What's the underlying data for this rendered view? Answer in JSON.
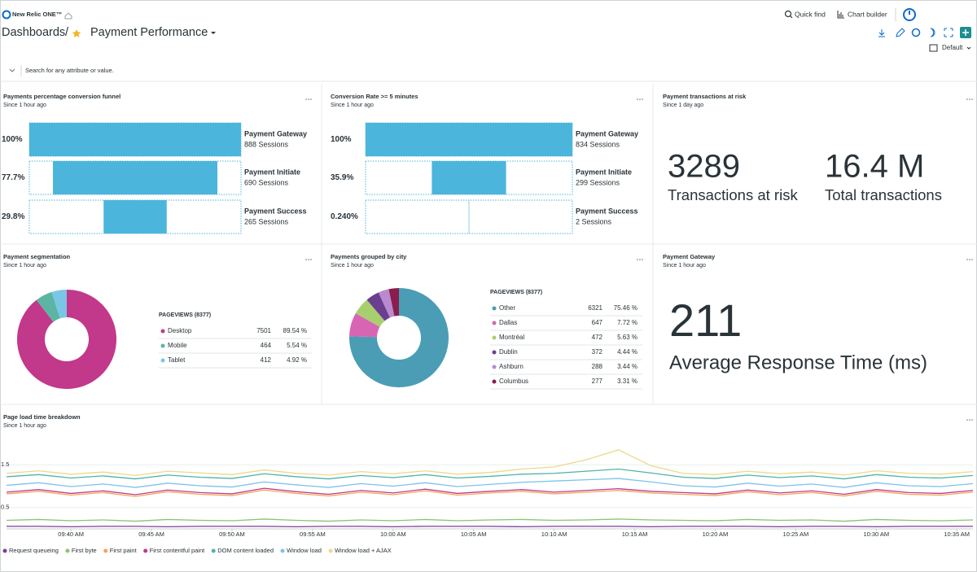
{
  "header": {
    "brand": "New Relic ONE™",
    "quick_find": "Quick find",
    "chart_builder": "Chart builder",
    "breadcrumb": "Dashboards",
    "separator": "/",
    "title": "Payment Performance",
    "view": "Default"
  },
  "search": {
    "placeholder": "Search for any attribute or value."
  },
  "widgets": {
    "funnel_payments": {
      "title": "Payments percentage conversion funnel",
      "subtitle": "Since 1 hour ago",
      "steps": [
        {
          "name": "Payment Gateway",
          "sessions": "888 Sessions",
          "value": 100,
          "value_label": "100%"
        },
        {
          "name": "Payment Initiate",
          "sessions": "690 Sessions",
          "value": 77.7,
          "value_label": "77.7%"
        },
        {
          "name": "Payment Success",
          "sessions": "265 Sessions",
          "value": 29.8,
          "value_label": "29.8%"
        }
      ]
    },
    "funnel_conversion": {
      "title": "Conversion Rate >= 5 minutes",
      "subtitle": "Since 1 hour ago",
      "steps": [
        {
          "name": "Payment Gateway",
          "sessions": "834 Sessions",
          "value": 100,
          "value_label": "100%"
        },
        {
          "name": "Payment Initiate",
          "sessions": "299 Sessions",
          "value": 35.9,
          "value_label": "35.9%"
        },
        {
          "name": "Payment Success",
          "sessions": "2 Sessions",
          "value": 0.24,
          "value_label": "0.240%"
        }
      ]
    },
    "transactions": {
      "title": "Payment transactions at risk",
      "subtitle": "Since 1 day ago",
      "metrics": [
        {
          "value": 3289,
          "label": "Transactions at risk"
        },
        {
          "value": "16.4 M",
          "label": "Total transactions"
        }
      ]
    },
    "segmentation": {
      "title": "Payment segmentation",
      "subtitle": "Since 1 hour ago",
      "legend_title": "PAGEVIEWS (8377)",
      "slices": [
        {
          "name": "Desktop",
          "color": "#c2388b",
          "count": 7501,
          "share": 89.54,
          "share_label": "89.54 %"
        },
        {
          "name": "Mobile",
          "color": "#5bb5a2",
          "count": 464,
          "share": 5.54,
          "share_label": "5.54 %"
        },
        {
          "name": "Tablet",
          "color": "#7ac6e6",
          "count": 412,
          "share": 4.92,
          "share_label": "4.92 %"
        }
      ]
    },
    "city": {
      "title": "Payments grouped by city",
      "subtitle": "Since 1 hour ago",
      "legend_title": "PAGEVIEWS (8377)",
      "slices": [
        {
          "name": "Other",
          "color": "#4a9db5",
          "count": 6321,
          "share": 75.46,
          "share_label": "75.46 %"
        },
        {
          "name": "Dallas",
          "color": "#d865b4",
          "count": 647,
          "share": 7.72,
          "share_label": "7.72 %"
        },
        {
          "name": "Montréal",
          "color": "#a8cf6f",
          "count": 472,
          "share": 5.63,
          "share_label": "5.63 %"
        },
        {
          "name": "Dublin",
          "color": "#6b3f8f",
          "count": 372,
          "share": 4.44,
          "share_label": "4.44 %"
        },
        {
          "name": "Ashburn",
          "color": "#b98ad0",
          "count": 288,
          "share": 3.44,
          "share_label": "3.44 %"
        },
        {
          "name": "Columbus",
          "color": "#8a1d4d",
          "count": 277,
          "share": 3.31,
          "share_label": "3.31 %"
        }
      ]
    },
    "gateway": {
      "title": "Payment Gateway",
      "subtitle": "Since 1 hour ago",
      "value": 211,
      "label": "Average Response Time (ms)"
    },
    "load_time": {
      "title": "Page load time breakdown",
      "subtitle": "Since 1 hour ago",
      "chart_data": {
        "type": "line",
        "x": [
          0,
          2,
          4,
          6,
          8,
          10,
          12,
          14,
          16,
          18,
          20,
          22,
          24,
          26,
          28,
          30,
          32,
          34,
          36,
          38,
          40,
          42,
          44,
          46,
          48,
          50,
          52,
          54,
          56,
          58,
          60
        ],
        "xlim": [
          0,
          60
        ],
        "xticks": [
          {
            "value": 4,
            "label": "09:40 AM"
          },
          {
            "value": 9,
            "label": "09:45 AM"
          },
          {
            "value": 14,
            "label": "09:50 AM"
          },
          {
            "value": 19,
            "label": "09:55 AM"
          },
          {
            "value": 24,
            "label": "10:00 AM"
          },
          {
            "value": 29,
            "label": "10:05 AM"
          },
          {
            "value": 34,
            "label": "10:10 AM"
          },
          {
            "value": 39,
            "label": "10:15 AM"
          },
          {
            "value": 44,
            "label": "10:20 AM"
          },
          {
            "value": 49,
            "label": "10:25 AM"
          },
          {
            "value": 54,
            "label": "10:30 AM"
          },
          {
            "value": 59,
            "label": "10:35 AM"
          }
        ],
        "ylim": [
          0,
          2
        ],
        "yticks": [
          0.5,
          1.5
        ],
        "grid": true,
        "series": [
          {
            "name": "Request queueing",
            "color": "#7b3f98",
            "values": [
              0.06,
              0.06,
              0.05,
              0.06,
              0.06,
              0.05,
              0.06,
              0.06,
              0.06,
              0.05,
              0.06,
              0.06,
              0.05,
              0.06,
              0.06,
              0.06,
              0.05,
              0.06,
              0.06,
              0.06,
              0.05,
              0.06,
              0.06,
              0.06,
              0.05,
              0.06,
              0.06,
              0.05,
              0.06,
              0.06,
              0.06
            ]
          },
          {
            "name": "First byte",
            "color": "#8dc26f",
            "values": [
              0.2,
              0.22,
              0.19,
              0.21,
              0.18,
              0.22,
              0.2,
              0.19,
              0.23,
              0.2,
              0.18,
              0.21,
              0.19,
              0.22,
              0.19,
              0.21,
              0.22,
              0.2,
              0.21,
              0.23,
              0.21,
              0.2,
              0.19,
              0.22,
              0.2,
              0.21,
              0.18,
              0.22,
              0.2,
              0.19,
              0.21
            ]
          },
          {
            "name": "First paint",
            "color": "#f2a55a",
            "values": [
              0.82,
              0.88,
              0.79,
              0.85,
              0.76,
              0.87,
              0.81,
              0.78,
              0.91,
              0.83,
              0.77,
              0.86,
              0.8,
              0.89,
              0.79,
              0.84,
              0.88,
              0.82,
              0.86,
              0.9,
              0.84,
              0.81,
              0.78,
              0.87,
              0.8,
              0.85,
              0.77,
              0.88,
              0.81,
              0.79,
              0.86
            ]
          },
          {
            "name": "First contentful paint",
            "color": "#c2388b",
            "values": [
              0.86,
              0.92,
              0.83,
              0.89,
              0.8,
              0.91,
              0.85,
              0.82,
              0.95,
              0.87,
              0.81,
              0.9,
              0.84,
              0.93,
              0.83,
              0.88,
              0.92,
              0.86,
              0.9,
              0.94,
              0.88,
              0.85,
              0.82,
              0.91,
              0.84,
              0.89,
              0.81,
              0.92,
              0.85,
              0.83,
              0.9
            ]
          },
          {
            "name": "DOM content loaded",
            "color": "#4fb3a8",
            "values": [
              1.22,
              1.27,
              1.19,
              1.24,
              1.17,
              1.26,
              1.21,
              1.18,
              1.29,
              1.22,
              1.17,
              1.25,
              1.2,
              1.27,
              1.19,
              1.23,
              1.28,
              1.3,
              1.35,
              1.4,
              1.31,
              1.21,
              1.18,
              1.26,
              1.2,
              1.24,
              1.17,
              1.27,
              1.21,
              1.19,
              1.25
            ]
          },
          {
            "name": "Window load",
            "color": "#7cc3ea",
            "values": [
              1.02,
              1.08,
              0.99,
              1.05,
              0.97,
              1.07,
              1.01,
              0.98,
              1.1,
              1.03,
              0.97,
              1.06,
              1.0,
              1.08,
              0.99,
              1.04,
              1.09,
              1.12,
              1.15,
              1.18,
              1.1,
              1.01,
              0.98,
              1.07,
              1.0,
              1.05,
              0.97,
              1.08,
              1.01,
              0.99,
              1.06
            ]
          },
          {
            "name": "Window load + AJAX",
            "color": "#ecd98a",
            "values": [
              1.3,
              1.36,
              1.28,
              1.33,
              1.25,
              1.35,
              1.31,
              1.27,
              1.38,
              1.3,
              1.26,
              1.34,
              1.29,
              1.36,
              1.28,
              1.32,
              1.4,
              1.45,
              1.62,
              1.85,
              1.48,
              1.3,
              1.27,
              1.35,
              1.29,
              1.33,
              1.26,
              1.36,
              1.3,
              1.28,
              1.34
            ]
          }
        ]
      }
    }
  }
}
